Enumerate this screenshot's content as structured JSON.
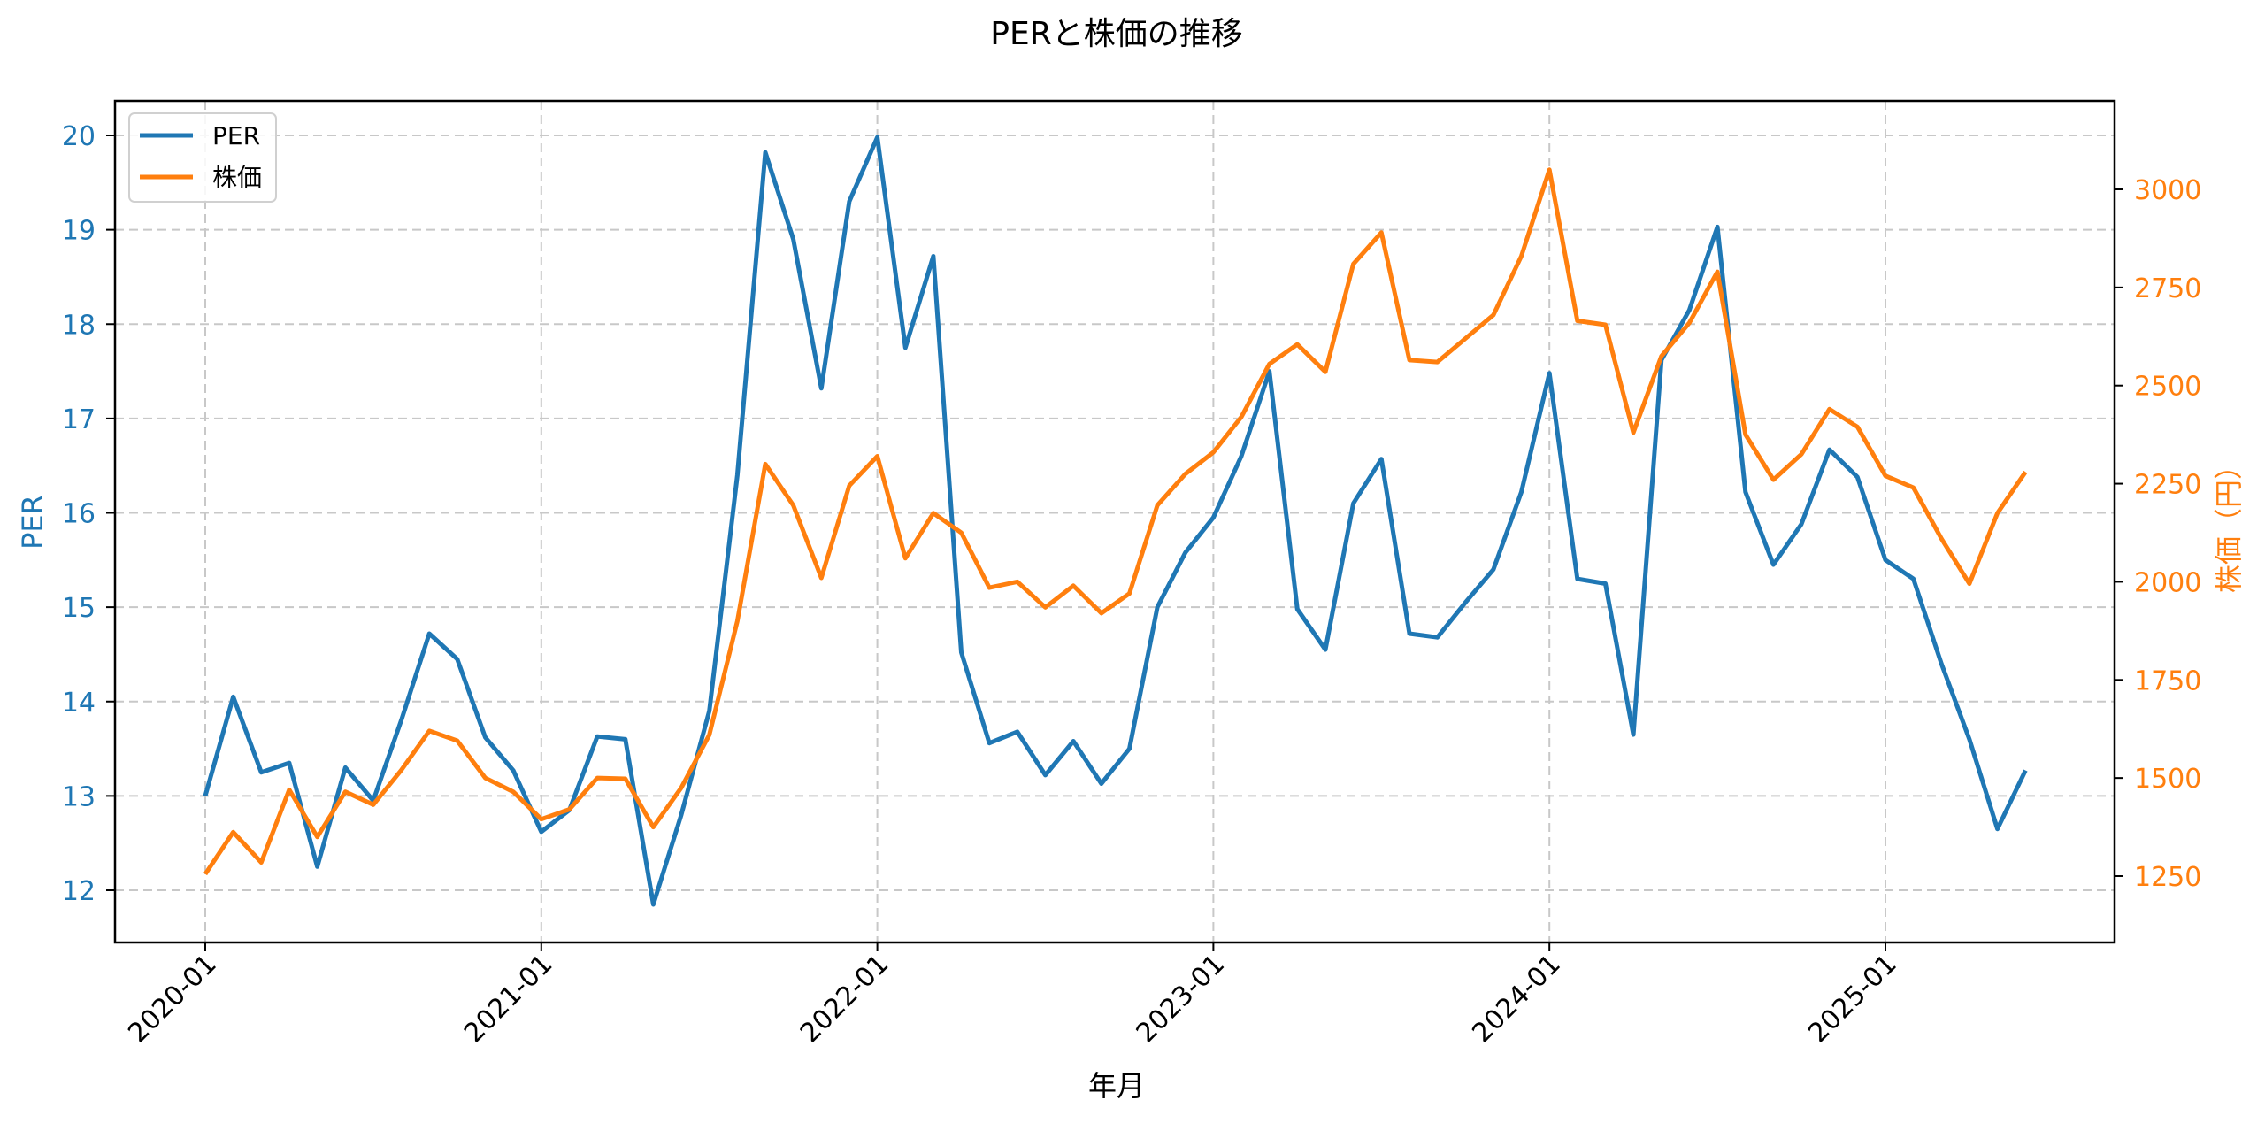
{
  "chart_data": {
    "type": "line",
    "title": "PERと株価の推移",
    "xlabel": "年月",
    "ylabel": "PER",
    "ylabel_right": "株価（円）",
    "x_tick_labels": [
      "2020-01",
      "2021-01",
      "2022-01",
      "2023-01",
      "2024-01",
      "2025-01"
    ],
    "y_ticks_left": [
      12,
      13,
      14,
      15,
      16,
      17,
      18,
      19,
      20
    ],
    "y_ticks_right": [
      1250,
      1500,
      1750,
      2000,
      2250,
      2500,
      2750,
      3000
    ],
    "ylim_left": [
      11.4,
      20.35
    ],
    "ylim_right": [
      1070,
      3220
    ],
    "grid": true,
    "legend_position": "upper left",
    "x": [
      "2020-01",
      "2020-02",
      "2020-03",
      "2020-04",
      "2020-05",
      "2020-06",
      "2020-07",
      "2020-08",
      "2020-09",
      "2020-10",
      "2020-11",
      "2020-12",
      "2021-01",
      "2021-02",
      "2021-03",
      "2021-04",
      "2021-05",
      "2021-06",
      "2021-07",
      "2021-08",
      "2021-09",
      "2021-10",
      "2021-11",
      "2021-12",
      "2022-01",
      "2022-02",
      "2022-03",
      "2022-04",
      "2022-05",
      "2022-06",
      "2022-07",
      "2022-08",
      "2022-09",
      "2022-10",
      "2022-11",
      "2022-12",
      "2023-01",
      "2023-02",
      "2023-03",
      "2023-04",
      "2023-05",
      "2023-06",
      "2023-07",
      "2023-08",
      "2023-09",
      "2023-10",
      "2023-11",
      "2023-12",
      "2024-01",
      "2024-02",
      "2024-03",
      "2024-04",
      "2024-05",
      "2024-06",
      "2024-07",
      "2024-08",
      "2024-09",
      "2024-10",
      "2024-11",
      "2024-12",
      "2025-01",
      "2025-02",
      "2025-03",
      "2025-04",
      "2025-05",
      "2025-06"
    ],
    "series": [
      {
        "name": "PER",
        "axis": "left",
        "color": "#1f77b4",
        "values": [
          13.0,
          14.05,
          13.25,
          13.35,
          12.25,
          13.3,
          12.95,
          13.8,
          14.72,
          14.45,
          13.62,
          13.27,
          12.62,
          12.85,
          13.63,
          13.6,
          11.85,
          12.8,
          13.9,
          16.4,
          19.82,
          18.9,
          17.32,
          19.3,
          19.98,
          17.75,
          18.72,
          14.52,
          13.56,
          13.68,
          13.22,
          13.58,
          13.13,
          13.5,
          15.0,
          15.58,
          15.95,
          16.6,
          17.5,
          14.98,
          14.55,
          16.1,
          16.57,
          14.72,
          14.68,
          15.05,
          15.4,
          16.22,
          17.48,
          15.3,
          15.25,
          13.65,
          17.62,
          18.15,
          19.03,
          16.22,
          15.45,
          15.88,
          16.67,
          16.38,
          15.5,
          15.3,
          14.4,
          13.6,
          12.65,
          13.27
        ]
      },
      {
        "name": "株価",
        "axis": "right",
        "color": "#ff7f0e",
        "values": [
          1255,
          1362,
          1285,
          1470,
          1350,
          1465,
          1432,
          1520,
          1620,
          1595,
          1500,
          1465,
          1395,
          1420,
          1500,
          1498,
          1375,
          1475,
          1610,
          1900,
          2300,
          2195,
          2010,
          2245,
          2320,
          2060,
          2175,
          2125,
          1985,
          2000,
          1935,
          1990,
          1920,
          1970,
          2195,
          2275,
          2330,
          2420,
          2555,
          2605,
          2535,
          2810,
          2890,
          2565,
          2560,
          2620,
          2680,
          2830,
          3050,
          2665,
          2655,
          2380,
          2575,
          2660,
          2790,
          2375,
          2260,
          2325,
          2440,
          2395,
          2270,
          2240,
          2110,
          1995,
          2175,
          2280
        ]
      }
    ]
  },
  "legend": {
    "items": [
      {
        "label": "PER",
        "color": "#1f77b4"
      },
      {
        "label": "株価",
        "color": "#ff7f0e"
      }
    ]
  },
  "colors": {
    "per": "#1f77b4",
    "price": "#ff7f0e",
    "grid": "#c8c8c8",
    "axis": "#000000"
  }
}
